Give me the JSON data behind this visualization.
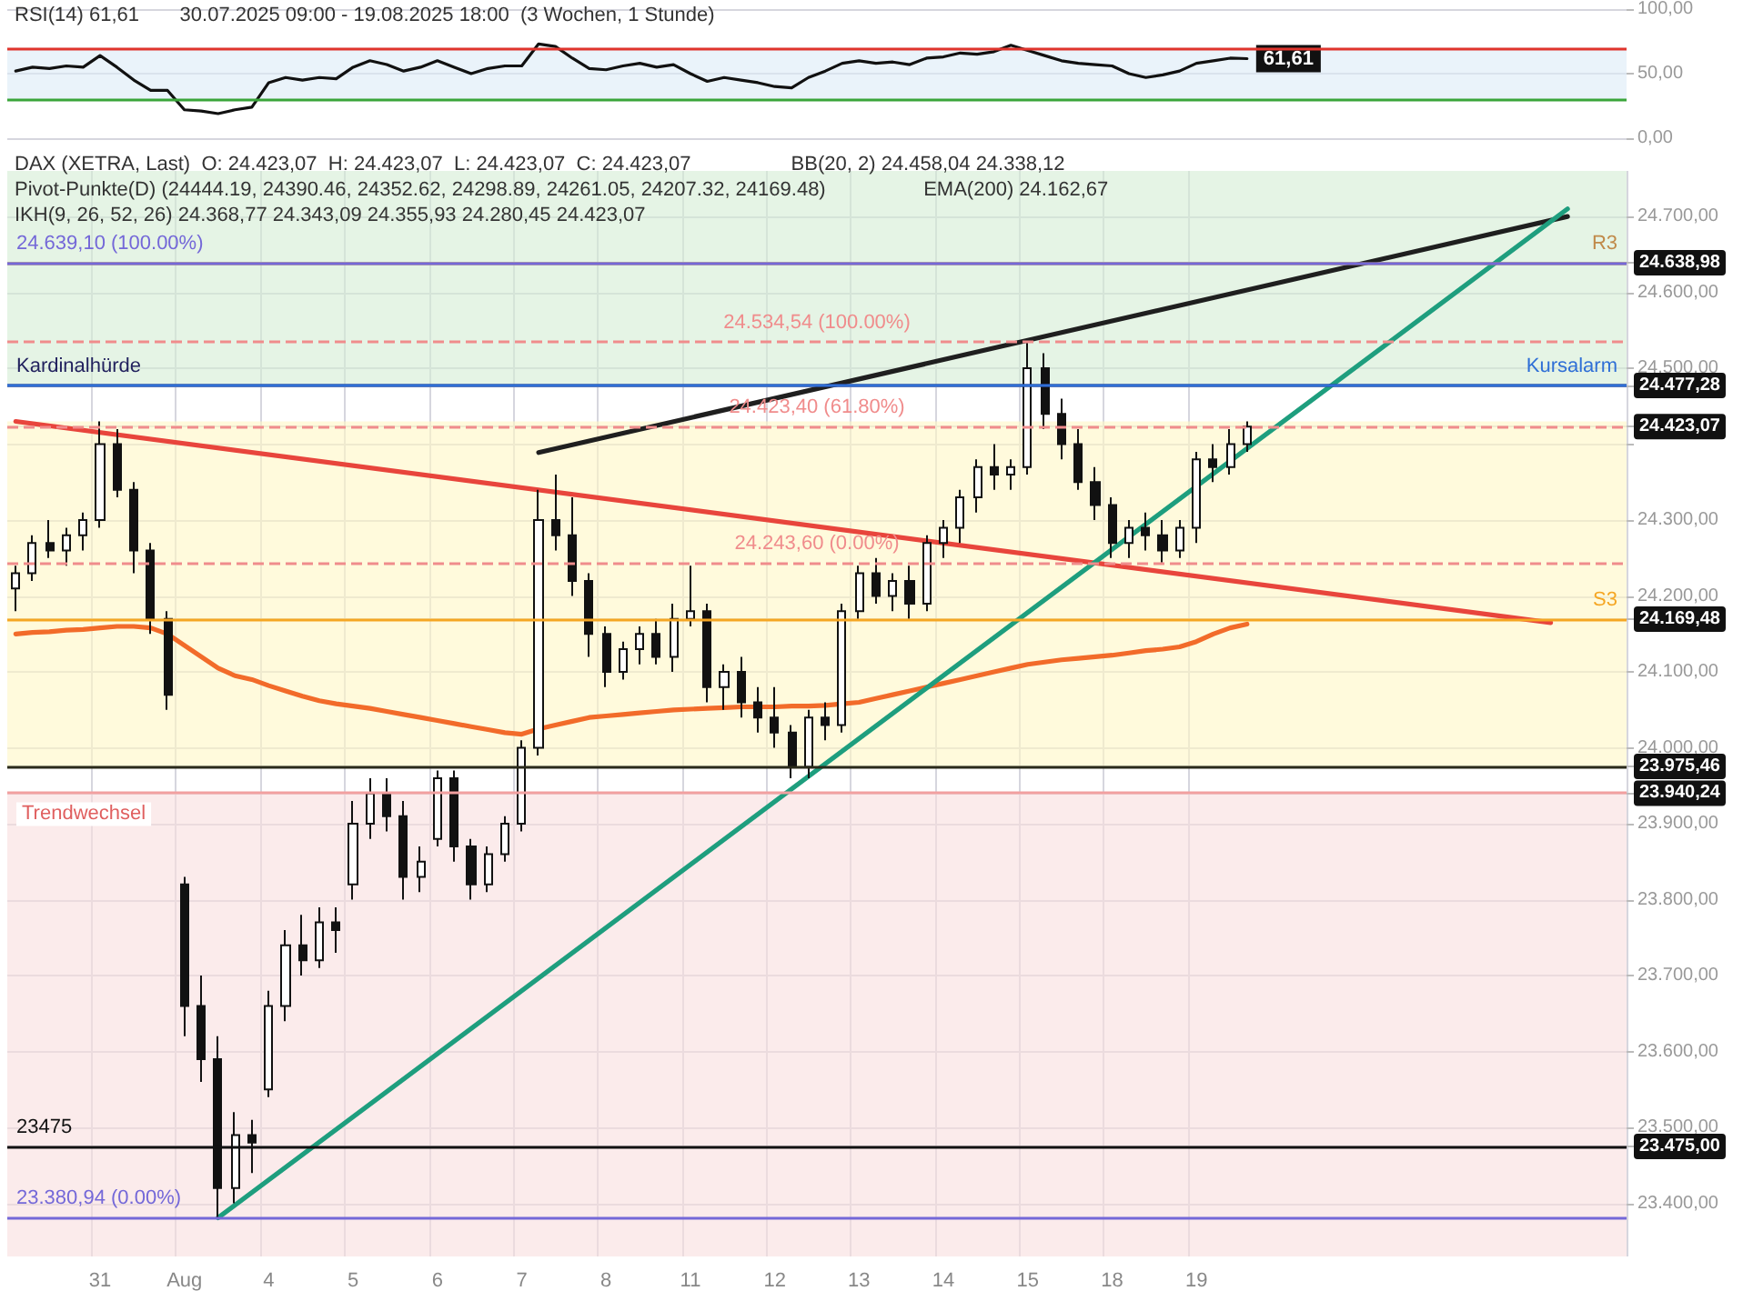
{
  "chart_data": [
    {
      "type": "line",
      "categories": [
        null,
        null,
        null,
        null,
        null,
        null,
        null,
        null,
        null,
        null,
        null,
        null,
        null,
        null,
        null,
        null,
        null,
        null,
        null,
        null,
        null,
        null,
        null,
        null,
        null,
        null,
        null,
        null,
        null,
        null,
        null,
        null,
        null,
        null,
        null,
        null,
        null,
        null,
        null,
        null,
        null,
        null,
        null,
        null,
        null,
        null,
        null,
        null,
        null,
        null,
        null,
        null,
        null,
        null,
        null,
        null,
        null,
        null,
        null,
        null,
        null,
        null,
        null,
        null,
        null,
        null,
        null,
        null,
        null,
        null,
        null,
        null,
        null,
        null,
        null,
        null,
        null,
        null,
        null,
        null,
        null,
        null,
        null,
        null,
        null,
        null,
        null,
        null,
        null,
        null,
        null,
        null,
        null,
        null,
        null,
        null
      ],
      "tick_labels": "y",
      "grid": "y",
      "color": "#111111",
      "values": [
        52,
        55,
        54,
        56,
        55,
        64,
        55,
        45,
        37,
        37,
        22,
        21,
        19,
        22,
        24,
        43,
        47,
        45,
        47,
        46,
        55,
        60,
        57,
        52,
        55,
        60,
        55,
        50,
        54,
        56,
        56,
        73,
        71,
        62,
        54,
        53,
        56,
        58,
        55,
        57,
        50,
        44,
        47,
        45,
        43,
        40,
        39,
        47,
        52,
        58,
        60,
        58,
        59,
        57,
        62,
        63,
        66,
        65,
        67,
        72,
        68,
        64,
        60,
        58,
        57,
        56,
        50,
        47,
        49,
        52,
        58,
        60,
        62,
        61.61,
        null,
        null,
        null,
        null,
        null,
        null,
        null,
        null,
        null,
        null,
        null,
        null,
        null,
        null,
        null,
        null,
        null,
        null,
        null,
        null,
        null,
        null
      ],
      "value_labels": [
        null,
        null,
        null,
        null,
        null,
        null,
        null,
        null,
        null,
        null,
        null,
        null,
        null,
        null,
        null,
        null,
        null,
        null,
        null,
        null,
        null,
        null,
        null,
        null,
        null,
        null,
        null,
        null,
        null,
        null,
        null,
        null,
        null,
        null,
        null,
        null,
        null,
        null,
        null,
        null,
        null,
        null,
        null,
        null,
        null,
        null,
        null,
        null,
        null,
        null,
        null,
        null,
        null,
        null,
        null,
        null,
        null,
        null,
        null,
        null,
        null,
        null,
        null,
        null,
        null,
        null,
        null,
        null,
        null,
        null,
        null,
        null,
        null,
        "61,61",
        null,
        null,
        null,
        null,
        null,
        null,
        null,
        null,
        null,
        null,
        null,
        null,
        null,
        null,
        null,
        null,
        null,
        null,
        null,
        null,
        null,
        null
      ],
      "ylim": [
        0,
        100
      ],
      "yticks": [
        {
          "value": 0,
          "label": "0,00"
        },
        {
          "value": 50,
          "label": "50,00"
        },
        {
          "value": 100,
          "label": "100,00"
        }
      ],
      "ref_lines": [
        {
          "axis": "y",
          "value": 70,
          "label": null,
          "color": "#e0342c"
        },
        {
          "axis": "y",
          "value": 30,
          "label": null,
          "color": "#3aa53a"
        }
      ],
      "bands": [
        {
          "axis": "y",
          "from": 30,
          "to": 70,
          "color": "#dcebf7"
        }
      ],
      "annotations": [
        "RSI(14) 61,61",
        "30.07.2025 09:00 - 19.08.2025 18:00  (3 Wochen, 1 Stunde)"
      ]
    },
    {
      "type": "candlestick",
      "categories": [
        null,
        null,
        null,
        null,
        null,
        "31",
        null,
        null,
        null,
        null,
        "Aug",
        null,
        null,
        null,
        null,
        "4",
        null,
        null,
        null,
        null,
        "5",
        null,
        null,
        null,
        null,
        "6",
        null,
        null,
        null,
        null,
        "7",
        null,
        null,
        null,
        null,
        "8",
        null,
        null,
        null,
        null,
        "11",
        null,
        null,
        null,
        null,
        "12",
        null,
        null,
        null,
        null,
        "13",
        null,
        null,
        null,
        null,
        "14",
        null,
        null,
        null,
        null,
        "15",
        null,
        null,
        null,
        null,
        "18",
        null,
        null,
        null,
        null,
        "19",
        null,
        null,
        null,
        null,
        null,
        null,
        null,
        null,
        null,
        null,
        null,
        null,
        null,
        null,
        null,
        null,
        null,
        null,
        null,
        null,
        null,
        null,
        null,
        null,
        null
      ],
      "grid": true,
      "ohlc": [
        [
          24210,
          24240,
          24180,
          24230
        ],
        [
          24230,
          24280,
          24220,
          24270
        ],
        [
          24270,
          24300,
          24250,
          24260
        ],
        [
          24260,
          24290,
          24240,
          24280
        ],
        [
          24280,
          24310,
          24260,
          24300
        ],
        [
          24300,
          24430,
          24290,
          24400
        ],
        [
          24400,
          24420,
          24330,
          24340
        ],
        [
          24340,
          24350,
          24230,
          24260
        ],
        [
          24260,
          24270,
          24150,
          24170
        ],
        [
          24170,
          24180,
          24050,
          24070
        ],
        [
          23820,
          23830,
          23620,
          23660
        ],
        [
          23660,
          23700,
          23560,
          23590
        ],
        [
          23590,
          23620,
          23381,
          23420
        ],
        [
          23420,
          23520,
          23400,
          23490
        ],
        [
          23490,
          23510,
          23440,
          23480
        ],
        [
          23550,
          23680,
          23540,
          23660
        ],
        [
          23660,
          23760,
          23640,
          23740
        ],
        [
          23740,
          23780,
          23700,
          23720
        ],
        [
          23720,
          23790,
          23710,
          23770
        ],
        [
          23770,
          23790,
          23730,
          23760
        ],
        [
          23820,
          23930,
          23800,
          23900
        ],
        [
          23900,
          23960,
          23880,
          23940
        ],
        [
          23940,
          23960,
          23890,
          23910
        ],
        [
          23910,
          23930,
          23800,
          23830
        ],
        [
          23830,
          23870,
          23810,
          23850
        ],
        [
          23880,
          23970,
          23870,
          23960
        ],
        [
          23960,
          23970,
          23850,
          23870
        ],
        [
          23870,
          23880,
          23800,
          23820
        ],
        [
          23820,
          23870,
          23810,
          23860
        ],
        [
          23860,
          23910,
          23850,
          23900
        ],
        [
          23900,
          24010,
          23890,
          24000
        ],
        [
          24000,
          24340,
          23990,
          24300
        ],
        [
          24300,
          24360,
          24260,
          24280
        ],
        [
          24280,
          24330,
          24200,
          24220
        ],
        [
          24220,
          24230,
          24120,
          24150
        ],
        [
          24150,
          24160,
          24080,
          24100
        ],
        [
          24100,
          24140,
          24090,
          24130
        ],
        [
          24130,
          24160,
          24110,
          24150
        ],
        [
          24150,
          24170,
          24110,
          24120
        ],
        [
          24120,
          24190,
          24100,
          24170
        ],
        [
          24170,
          24240,
          24160,
          24180
        ],
        [
          24180,
          24190,
          24060,
          24080
        ],
        [
          24080,
          24110,
          24050,
          24100
        ],
        [
          24100,
          24120,
          24040,
          24060
        ],
        [
          24060,
          24080,
          24020,
          24040
        ],
        [
          24040,
          24080,
          24000,
          24020
        ],
        [
          24020,
          24030,
          23960,
          23975
        ],
        [
          23975,
          24050,
          23960,
          24040
        ],
        [
          24040,
          24060,
          24010,
          24030
        ],
        [
          24030,
          24190,
          24020,
          24180
        ],
        [
          24180,
          24240,
          24170,
          24230
        ],
        [
          24230,
          24250,
          24190,
          24200
        ],
        [
          24200,
          24230,
          24180,
          24220
        ],
        [
          24220,
          24240,
          24170,
          24190
        ],
        [
          24190,
          24280,
          24180,
          24270
        ],
        [
          24270,
          24300,
          24250,
          24290
        ],
        [
          24290,
          24340,
          24270,
          24330
        ],
        [
          24330,
          24380,
          24310,
          24370
        ],
        [
          24370,
          24400,
          24340,
          24360
        ],
        [
          24360,
          24380,
          24340,
          24370
        ],
        [
          24370,
          24535,
          24360,
          24500
        ],
        [
          24500,
          24520,
          24420,
          24440
        ],
        [
          24440,
          24460,
          24380,
          24400
        ],
        [
          24400,
          24420,
          24340,
          24350
        ],
        [
          24350,
          24370,
          24300,
          24320
        ],
        [
          24320,
          24330,
          24250,
          24270
        ],
        [
          24270,
          24300,
          24250,
          24290
        ],
        [
          24290,
          24310,
          24260,
          24280
        ],
        [
          24280,
          24300,
          24244,
          24260
        ],
        [
          24260,
          24300,
          24250,
          24290
        ],
        [
          24290,
          24390,
          24270,
          24380
        ],
        [
          24380,
          24400,
          24350,
          24370
        ],
        [
          24370,
          24420,
          24360,
          24400
        ],
        [
          24400,
          24430,
          24390,
          24423.07
        ],
        null,
        null,
        null,
        null,
        null,
        null,
        null,
        null,
        null,
        null,
        null,
        null,
        null,
        null,
        null,
        null,
        null,
        null,
        null,
        null,
        null,
        null
      ],
      "series": [
        {
          "type": "line",
          "color": "#f26b2a",
          "values": [
            24150,
            24152,
            24153,
            24155,
            24156,
            24158,
            24160,
            24160,
            24158,
            24150,
            24135,
            24120,
            24105,
            24095,
            24090,
            24082,
            24075,
            24068,
            24062,
            24058,
            24055,
            24052,
            24048,
            24044,
            24040,
            24036,
            24032,
            24028,
            24024,
            24020,
            24018,
            24025,
            24030,
            24035,
            24040,
            24042,
            24044,
            24046,
            24048,
            24050,
            24051,
            24052,
            24053,
            24054,
            24054,
            24054,
            24055,
            24055,
            24056,
            24058,
            24060,
            24065,
            24070,
            24075,
            24080,
            24085,
            24090,
            24095,
            24100,
            24105,
            24110,
            24113,
            24116,
            24118,
            24120,
            24122,
            24125,
            24128,
            24130,
            24133,
            24140,
            24150,
            24158,
            24163,
            null,
            null,
            null,
            null,
            null,
            null,
            null,
            null,
            null,
            null,
            null,
            null,
            null,
            null,
            null,
            null,
            null,
            null,
            null,
            null,
            null,
            null
          ]
        },
        {
          "type": "line",
          "color": "#e8453c",
          "values": [
            24430,
            null,
            null,
            null,
            null,
            null,
            null,
            null,
            null,
            null,
            null,
            null,
            null,
            null,
            null,
            null,
            null,
            null,
            null,
            null,
            null,
            null,
            null,
            null,
            null,
            null,
            null,
            null,
            null,
            null,
            null,
            null,
            null,
            null,
            null,
            null,
            null,
            null,
            null,
            null,
            null,
            null,
            null,
            null,
            null,
            null,
            null,
            null,
            null,
            null,
            null,
            null,
            null,
            null,
            null,
            null,
            null,
            null,
            null,
            null,
            null,
            null,
            null,
            null,
            null,
            null,
            null,
            null,
            null,
            null,
            null,
            null,
            null,
            null,
            null,
            null,
            null,
            null,
            null,
            null,
            null,
            null,
            null,
            null,
            null,
            null,
            null,
            null,
            null,
            null,
            null,
            24165,
            null,
            null,
            null,
            null
          ]
        },
        {
          "type": "line",
          "color": "#1f1f1f",
          "values": [
            null,
            null,
            null,
            null,
            null,
            null,
            null,
            null,
            null,
            null,
            null,
            null,
            null,
            null,
            null,
            null,
            null,
            null,
            null,
            null,
            null,
            null,
            null,
            null,
            null,
            null,
            null,
            null,
            null,
            null,
            null,
            24389,
            null,
            null,
            null,
            null,
            null,
            null,
            null,
            null,
            null,
            null,
            null,
            null,
            null,
            null,
            null,
            null,
            null,
            null,
            null,
            null,
            null,
            null,
            null,
            null,
            null,
            null,
            null,
            null,
            null,
            null,
            null,
            null,
            null,
            null,
            null,
            null,
            null,
            null,
            null,
            null,
            null,
            null,
            null,
            null,
            null,
            null,
            null,
            null,
            null,
            null,
            null,
            null,
            null,
            null,
            null,
            null,
            null,
            null,
            null,
            null,
            24700,
            null,
            null,
            null
          ]
        },
        {
          "type": "line",
          "color": "#1e9e7e",
          "values": [
            null,
            null,
            null,
            null,
            null,
            null,
            null,
            null,
            null,
            null,
            null,
            null,
            23381,
            null,
            null,
            null,
            null,
            null,
            null,
            null,
            null,
            null,
            null,
            null,
            null,
            null,
            null,
            null,
            null,
            null,
            null,
            null,
            null,
            null,
            null,
            null,
            null,
            null,
            null,
            null,
            null,
            null,
            null,
            null,
            null,
            null,
            null,
            null,
            null,
            null,
            null,
            null,
            null,
            null,
            null,
            null,
            null,
            null,
            null,
            null,
            null,
            null,
            null,
            null,
            null,
            null,
            null,
            null,
            null,
            null,
            null,
            null,
            null,
            null,
            null,
            null,
            null,
            null,
            null,
            null,
            null,
            null,
            null,
            null,
            null,
            null,
            null,
            null,
            null,
            null,
            null,
            null,
            24710,
            null,
            null,
            null
          ]
        }
      ],
      "ylim": [
        23330,
        24760
      ],
      "yticks": [
        {
          "value": 23400,
          "label": "23.400,00"
        },
        {
          "value": 23500,
          "label": "23.500,00"
        },
        {
          "value": 23600,
          "label": "23.600,00"
        },
        {
          "value": 23700,
          "label": "23.700,00"
        },
        {
          "value": 23800,
          "label": "23.800,00"
        },
        {
          "value": 23900,
          "label": "23.900,00"
        },
        {
          "value": 24000,
          "label": "24.000,00"
        },
        {
          "value": 24100,
          "label": "24.100,00"
        },
        {
          "value": 24200,
          "label": "24.200,00"
        },
        {
          "value": 24300,
          "label": "24.300,00"
        },
        {
          "value": 24400,
          "label": null
        },
        {
          "value": 24500,
          "label": "24.500,00"
        },
        {
          "value": 24600,
          "label": "24.600,00"
        },
        {
          "value": 24700,
          "label": "24.700,00"
        },
        {
          "value": 24638.98,
          "label": "24.638,98"
        },
        {
          "value": 24477.28,
          "label": "24.477,28"
        },
        {
          "value": 24423.07,
          "label": "24.423,07"
        },
        {
          "value": 24169.48,
          "label": "24.169,48"
        },
        {
          "value": 23975.46,
          "label": "23.975,46"
        },
        {
          "value": 23940.24,
          "label": "23.940,24"
        },
        {
          "value": 23475,
          "label": "23.475,00"
        }
      ],
      "ref_lines": [
        {
          "axis": "y",
          "value": 24638.98,
          "label": "R3",
          "color": "#c08a4a"
        },
        {
          "axis": "y",
          "value": 24639.1,
          "label": "24.639,10 (100.00%)",
          "color": "#7468d8",
          "line_style": "solid"
        },
        {
          "axis": "y",
          "value": 24534.54,
          "label": "24.534,54 (100.00%)",
          "color": "#f08c8c",
          "line_style": "dashed"
        },
        {
          "axis": "y",
          "value": 24477.28,
          "label": "Kardinalhürde",
          "color": "#22225e",
          "line_style": "solid"
        },
        {
          "axis": "y",
          "value": 24477.28,
          "label": "Kursalarm",
          "color": "#2f6fd6"
        },
        {
          "axis": "y",
          "value": 24423.4,
          "label": "24.423,40 (61.80%)",
          "color": "#f08c8c",
          "line_style": "dashed"
        },
        {
          "axis": "y",
          "value": 24243.6,
          "label": "24.243,60 (0.00%)",
          "color": "#f08c8c",
          "line_style": "dashed"
        },
        {
          "axis": "y",
          "value": 24169.48,
          "label": "S3",
          "color": "#f5a623"
        },
        {
          "axis": "y",
          "value": 23975.46,
          "label": null,
          "color": "#2a2a1a"
        },
        {
          "axis": "y",
          "value": 23940.24,
          "label": null,
          "color": "#f2a0a0"
        },
        {
          "axis": "y",
          "value": 23475,
          "label": "23475",
          "color": "#111111",
          "line_style": "solid"
        },
        {
          "axis": "y",
          "value": 23380.94,
          "label": "23.380,94 (0.00%)",
          "color": "#7468d8",
          "line_style": "solid"
        }
      ],
      "bands": [
        {
          "axis": "y",
          "from": 24477.28,
          "to": 24760,
          "color": "#d4ecd4"
        },
        {
          "axis": "y",
          "from": 23975.46,
          "to": 24430,
          "color": "#fff6c4"
        },
        {
          "axis": "y",
          "from": 23330,
          "to": 23940.24,
          "color": "#f8dede",
          "label": "Trendwechsel"
        }
      ],
      "annotations": [
        "DAX (XETRA, Last)  O: 24.423,07  H: 24.423,07  L: 24.423,07  C: 24.423,07",
        "BB(20, 2) 24.458,04 24.338,12",
        "Pivot-Punkte(D) (24444.19, 24390.46, 24352.62, 24298.89, 24261.05, 24207.32, 24169.48)",
        "EMA(200) 24.162,67",
        "IKH(9, 26, 52, 26) 24.368,77 24.343,09 24.355,93 24.280,45 24.423,07"
      ]
    }
  ]
}
